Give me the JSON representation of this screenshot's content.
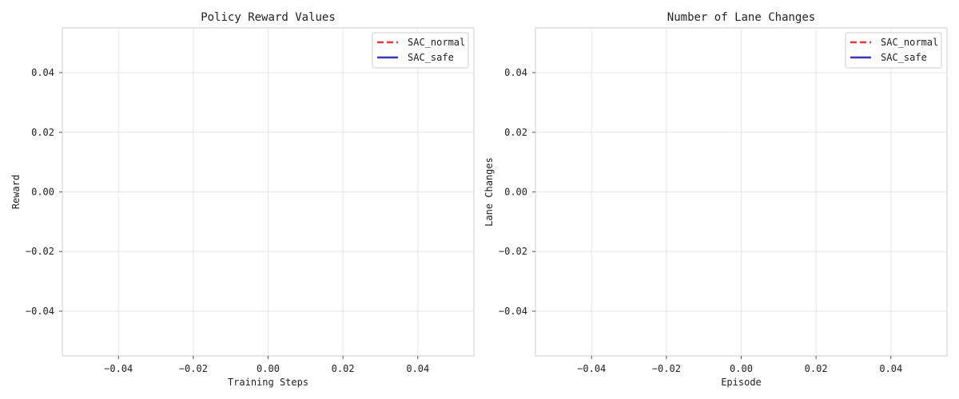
{
  "chart_data": [
    {
      "type": "line",
      "title": "Policy Reward Values",
      "xlabel": "Training Steps",
      "ylabel": "Reward",
      "xlim": [
        -0.055,
        0.055
      ],
      "ylim": [
        -0.055,
        0.055
      ],
      "xticks": [
        -0.04,
        -0.02,
        0.0,
        0.02,
        0.04
      ],
      "xtick_labels": [
        "−0.04",
        "−0.02",
        "0.00",
        "0.02",
        "0.04"
      ],
      "yticks": [
        0.04,
        0.02,
        0.0,
        -0.02,
        -0.04
      ],
      "ytick_labels": [
        "0.04",
        "0.02",
        "0.00",
        "−0.02",
        "−0.04"
      ],
      "grid": true,
      "legend_position": "top-right",
      "series": [
        {
          "name": "SAC_normal",
          "color": "#ee3333",
          "dash": "dashed",
          "x": [],
          "y": []
        },
        {
          "name": "SAC_safe",
          "color": "#3333dd",
          "dash": "solid",
          "x": [],
          "y": []
        }
      ]
    },
    {
      "type": "line",
      "title": "Number of Lane Changes",
      "xlabel": "Episode",
      "ylabel": "Lane Changes",
      "xlim": [
        -0.055,
        0.055
      ],
      "ylim": [
        -0.055,
        0.055
      ],
      "xticks": [
        -0.04,
        -0.02,
        0.0,
        0.02,
        0.04
      ],
      "xtick_labels": [
        "−0.04",
        "−0.02",
        "0.00",
        "0.02",
        "0.04"
      ],
      "yticks": [
        0.04,
        0.02,
        0.0,
        -0.02,
        -0.04
      ],
      "ytick_labels": [
        "0.04",
        "0.02",
        "0.00",
        "−0.02",
        "−0.04"
      ],
      "grid": true,
      "legend_position": "top-right",
      "series": [
        {
          "name": "SAC_normal",
          "color": "#ee3333",
          "dash": "dashed",
          "x": [],
          "y": []
        },
        {
          "name": "SAC_safe",
          "color": "#3333dd",
          "dash": "solid",
          "x": [],
          "y": []
        }
      ]
    }
  ]
}
